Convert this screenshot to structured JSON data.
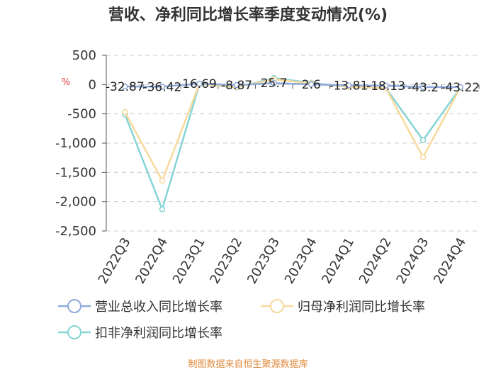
{
  "chart_data": {
    "type": "line",
    "title": "营收、净利同比增长率季度变动情况(%)",
    "unit_label": "%",
    "categories": [
      "2022Q3",
      "2022Q4",
      "2023Q1",
      "2023Q2",
      "2023Q3",
      "2023Q4",
      "2024Q1",
      "2024Q2",
      "2024Q3",
      "2024Q4"
    ],
    "ylim": [
      -2500,
      500
    ],
    "yticks": [
      500,
      0,
      -500,
      -1000,
      -1500,
      -2000,
      -2500
    ],
    "ytick_labels": [
      "500",
      "0",
      "-500",
      "-1,000",
      "-1,500",
      "-2,000",
      "-2,500"
    ],
    "grid": true,
    "legend_position": "bottom",
    "series": [
      {
        "name": "营业总收入同比增长率",
        "color": "#8faadc",
        "values": [
          -32.87,
          -36.42,
          16.69,
          -8.87,
          25.7,
          2.6,
          -13.81,
          -18.13,
          -43.2,
          -43.22
        ],
        "labels": [
          "-32.87",
          "-36.42",
          "16.69",
          "-8.87",
          "25.7",
          "2.6",
          "-13.81",
          "-18.13",
          "-43.2",
          "-43.22"
        ]
      },
      {
        "name": "归母净利润同比增长率",
        "color": "#f7d99b",
        "values": [
          -470,
          -1640,
          10,
          -45,
          90,
          20,
          -40,
          -60,
          -1240,
          -50
        ]
      },
      {
        "name": "扣非净利润同比增长率",
        "color": "#86d4d4",
        "values": [
          -510,
          -2130,
          10,
          -50,
          110,
          30,
          -40,
          -60,
          -950,
          -55
        ]
      }
    ]
  },
  "source_note": "制图数据来自恒生聚源数据库"
}
